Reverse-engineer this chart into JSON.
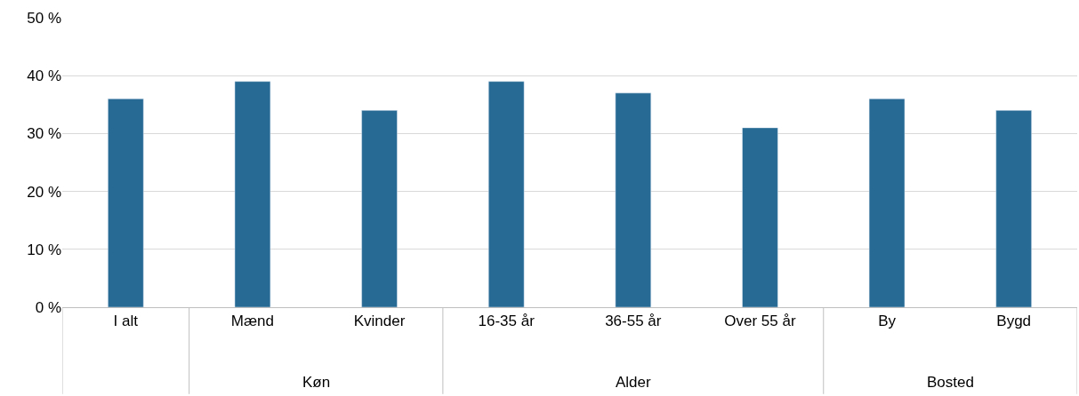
{
  "chart_data": {
    "type": "bar",
    "categories": [
      "I alt",
      "Mænd",
      "Kvinder",
      "16-35 år",
      "36-55 år",
      "Over 55 år",
      "By",
      "Bygd"
    ],
    "values": [
      36,
      39,
      34,
      39,
      37,
      31,
      36,
      34
    ],
    "color": "#276a94",
    "ylim": [
      0,
      50
    ],
    "yticks": [
      {
        "value": 0,
        "label": "0 %"
      },
      {
        "value": 10,
        "label": "10 %"
      },
      {
        "value": 20,
        "label": "20 %"
      },
      {
        "value": 30,
        "label": "30 %"
      },
      {
        "value": 40,
        "label": "40 %"
      },
      {
        "value": 50,
        "label": "50 %"
      }
    ],
    "grid": "y",
    "legend": false,
    "annotations": [
      "Køn",
      "Alder",
      "Bosted"
    ]
  }
}
